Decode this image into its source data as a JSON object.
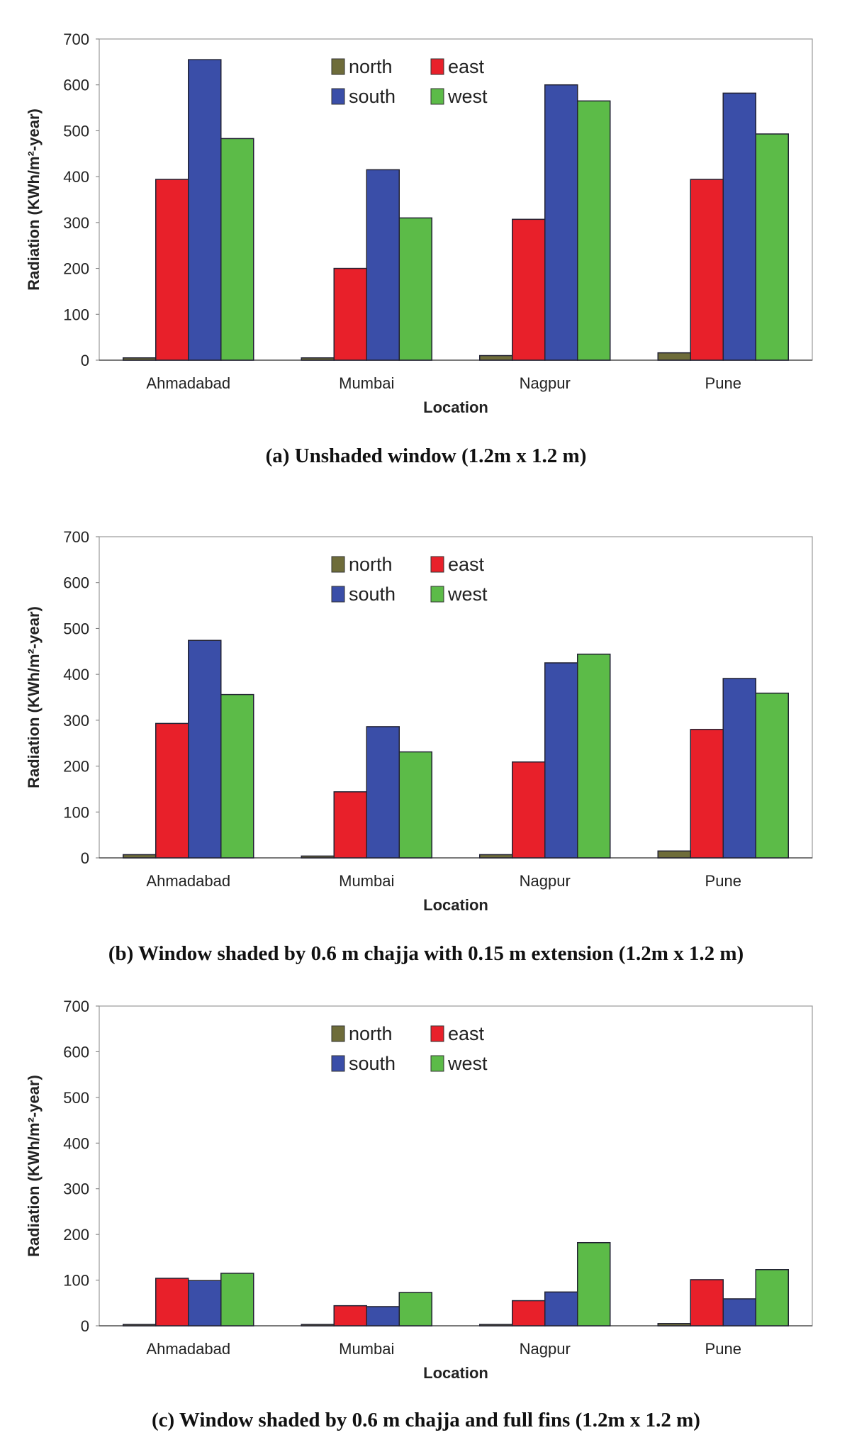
{
  "colors": {
    "north": "#6e6c3a",
    "east": "#e8202a",
    "south": "#3a4ea8",
    "west": "#5cbb48"
  },
  "chart_data": [
    {
      "type": "bar",
      "title": "(a) Unshaded window (1.2m x 1.2 m)",
      "xlabel": "Location",
      "ylabel": "Radiation  (KWh/m²-year)",
      "ylim": [
        0,
        700
      ],
      "yticks": [
        0,
        100,
        200,
        300,
        400,
        500,
        600,
        700
      ],
      "categories": [
        "Ahmadabad",
        "Mumbai",
        "Nagpur",
        "Pune"
      ],
      "legend_placement": "top-center",
      "series": [
        {
          "name": "north",
          "values": [
            5,
            5,
            10,
            16
          ]
        },
        {
          "name": "east",
          "values": [
            394,
            200,
            307,
            394
          ]
        },
        {
          "name": "south",
          "values": [
            655,
            415,
            600,
            582
          ]
        },
        {
          "name": "west",
          "values": [
            483,
            310,
            565,
            493
          ]
        }
      ]
    },
    {
      "type": "bar",
      "title": "(b) Window shaded by 0.6 m chajja with 0.15 m extension (1.2m x 1.2 m)",
      "xlabel": "Location",
      "ylabel": "Radiation  (KWh/m²-year)",
      "ylim": [
        0,
        700
      ],
      "yticks": [
        0,
        100,
        200,
        300,
        400,
        500,
        600,
        700
      ],
      "categories": [
        "Ahmadabad",
        "Mumbai",
        "Nagpur",
        "Pune"
      ],
      "legend_placement": "top-center",
      "series": [
        {
          "name": "north",
          "values": [
            7,
            4,
            7,
            15
          ]
        },
        {
          "name": "east",
          "values": [
            293,
            144,
            209,
            280
          ]
        },
        {
          "name": "south",
          "values": [
            474,
            286,
            425,
            391
          ]
        },
        {
          "name": "west",
          "values": [
            356,
            231,
            444,
            359
          ]
        }
      ]
    },
    {
      "type": "bar",
      "title": "(c) Window shaded by 0.6 m chajja and full fins (1.2m x 1.2 m)",
      "xlabel": "Location",
      "ylabel": "Radiation  (KWh/m²-year)",
      "ylim": [
        0,
        700
      ],
      "yticks": [
        0,
        100,
        200,
        300,
        400,
        500,
        600,
        700
      ],
      "categories": [
        "Ahmadabad",
        "Mumbai",
        "Nagpur",
        "Pune"
      ],
      "legend_placement": "top-center",
      "series": [
        {
          "name": "north",
          "values": [
            3,
            3,
            3,
            5
          ]
        },
        {
          "name": "east",
          "values": [
            104,
            44,
            55,
            101
          ]
        },
        {
          "name": "south",
          "values": [
            99,
            42,
            74,
            59
          ]
        },
        {
          "name": "west",
          "values": [
            115,
            73,
            182,
            123
          ]
        }
      ]
    }
  ]
}
